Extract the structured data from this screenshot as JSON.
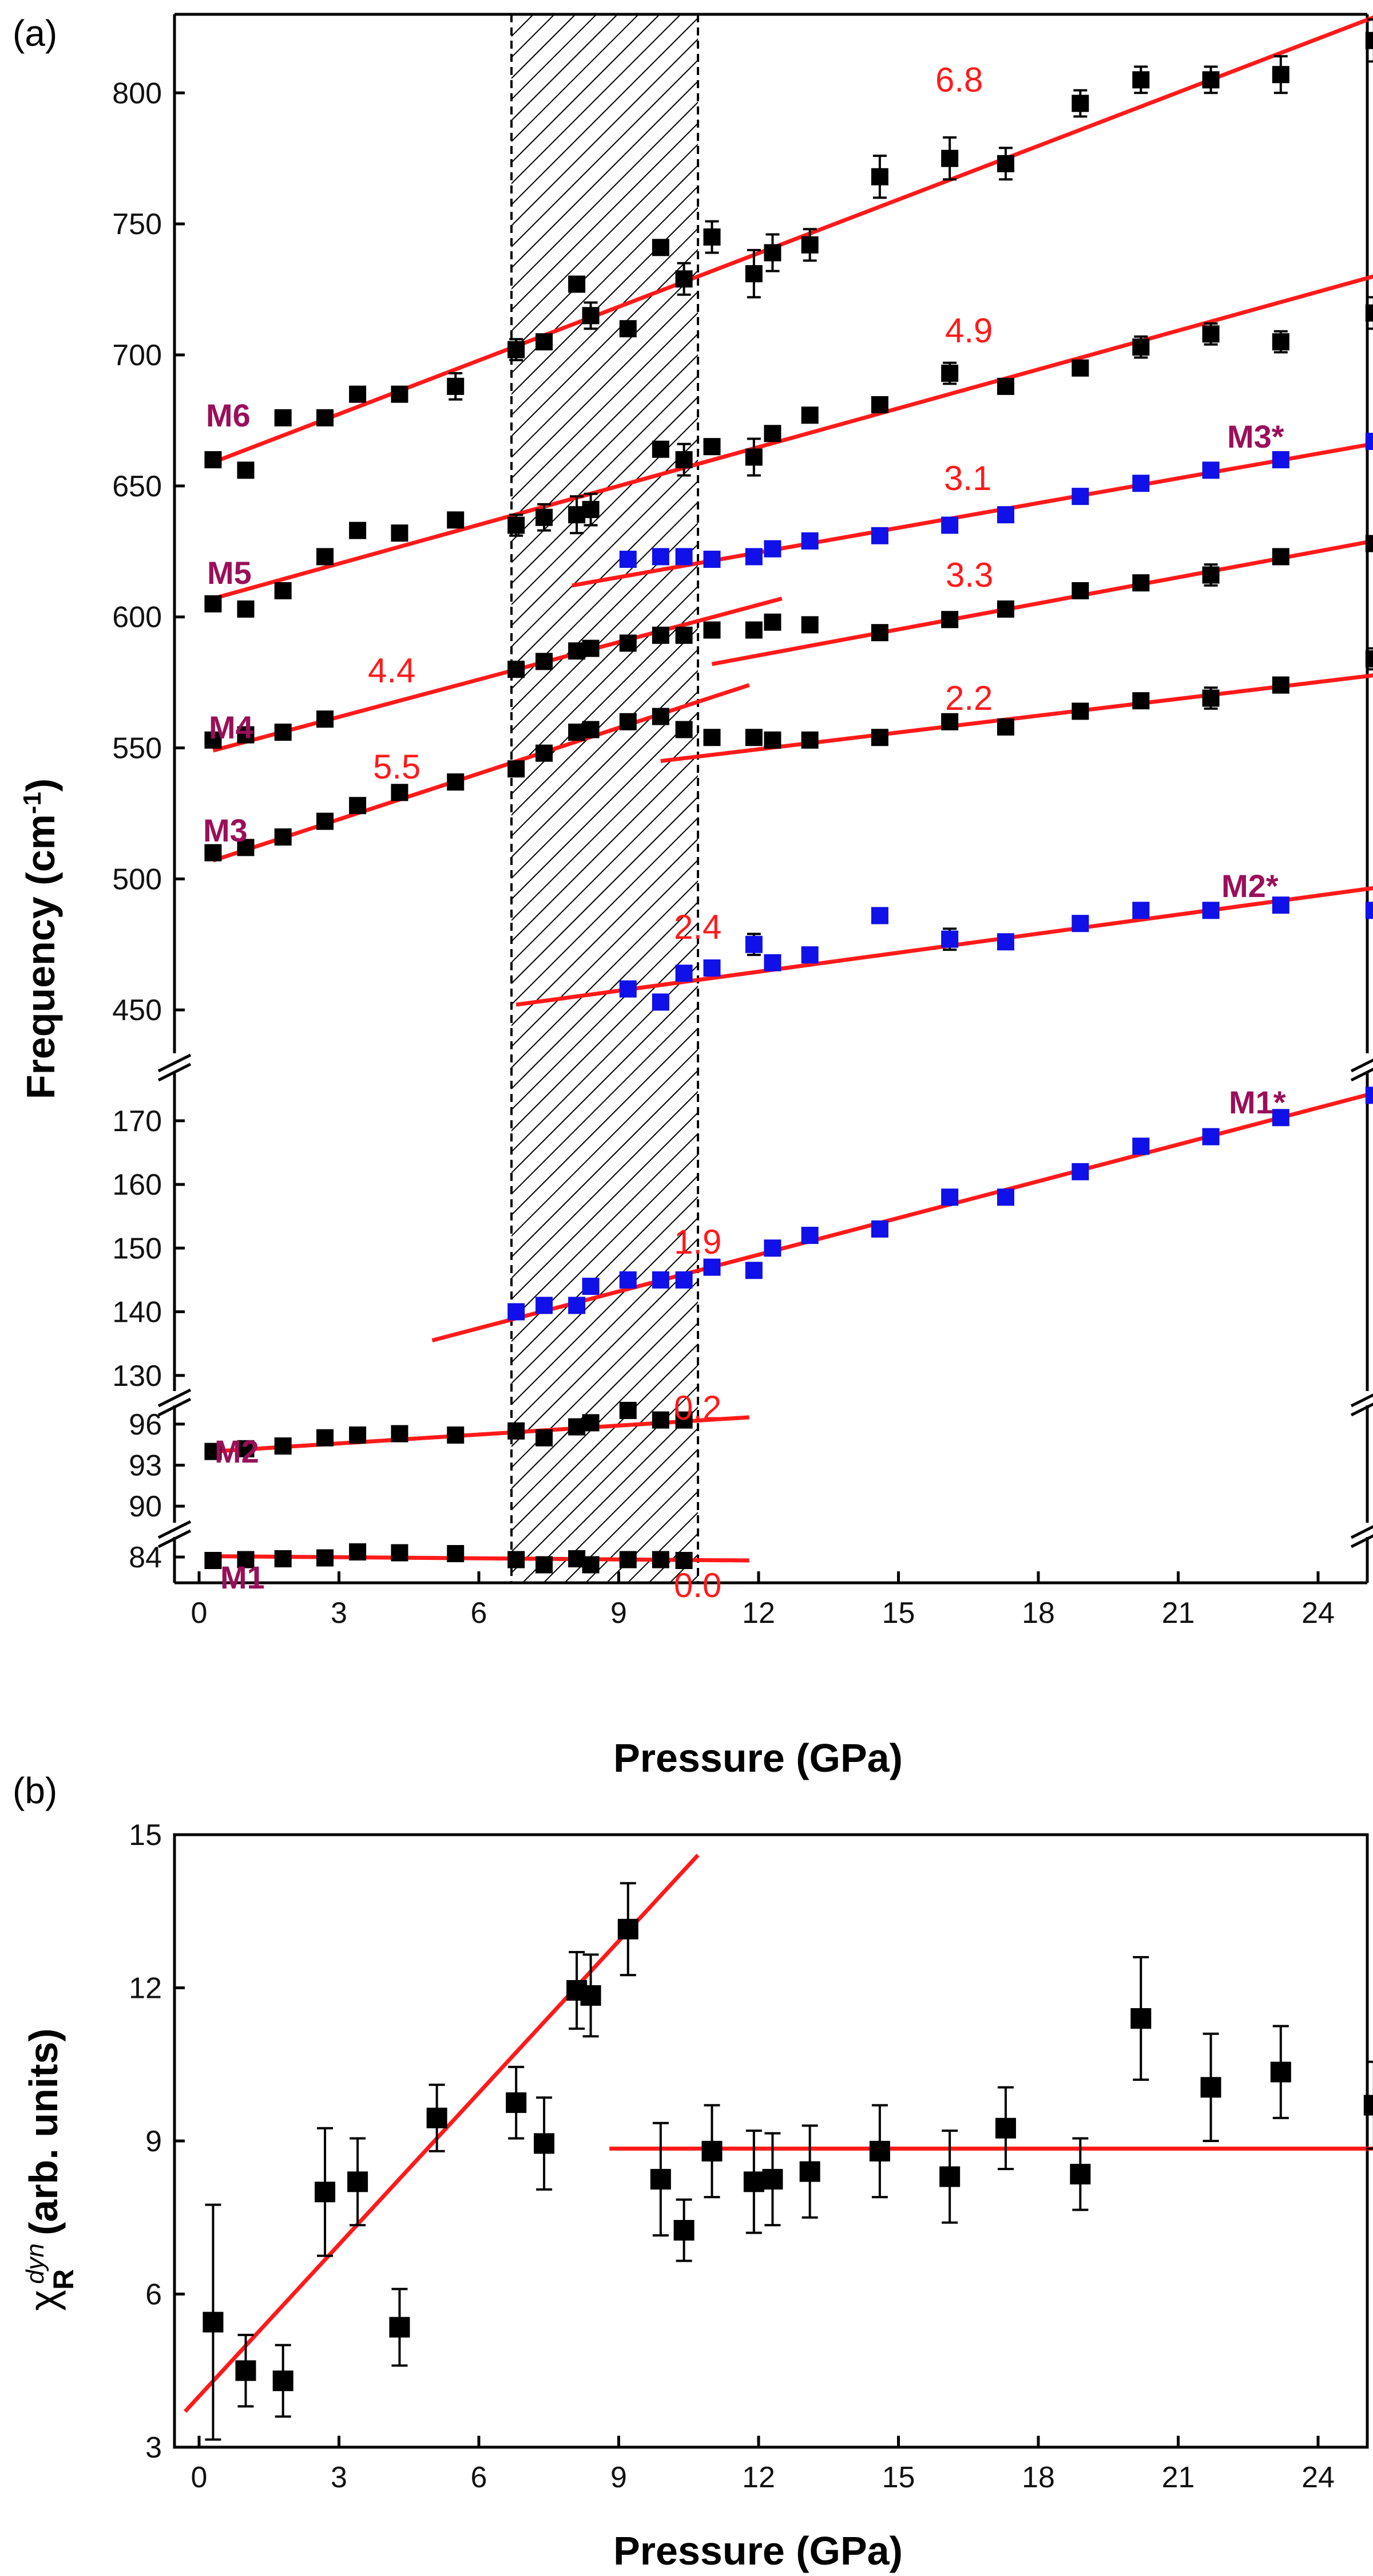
{
  "chart_data": [
    {
      "panel": "(a)",
      "type": "scatter",
      "xlabel": "Pressure (GPa)",
      "ylabel": "Frequency (cm",
      "ylabel_sup": "-1",
      "ylabel_tail": ")",
      "xlim": [
        -0.5,
        26
      ],
      "x_ticks": [
        0,
        3,
        6,
        9,
        12,
        15,
        18,
        21,
        24
      ],
      "shaded_region": [
        6.7,
        10.7
      ],
      "segments": [
        {
          "name": "upper",
          "ylim": [
            440,
            830
          ],
          "ticks": [
            450,
            500,
            550,
            600,
            650,
            700,
            750,
            800
          ]
        },
        {
          "name": "mid",
          "ylim": [
            128,
            177
          ],
          "ticks": [
            130,
            140,
            150,
            160,
            170
          ]
        },
        {
          "name": "m2",
          "ylim": [
            89,
            98
          ],
          "ticks": [
            90,
            93,
            96
          ]
        },
        {
          "name": "m1",
          "ylim": [
            81,
            86
          ],
          "ticks": [
            84
          ]
        }
      ],
      "series": [
        {
          "name": "M6",
          "segment": "upper",
          "color": "#000000",
          "x": [
            0.3,
            1.0,
            1.8,
            2.7,
            3.4,
            4.3,
            5.5,
            6.8,
            7.4,
            8.1,
            8.4,
            9.2,
            9.9,
            10.4,
            11.0,
            11.9,
            12.3,
            13.1,
            14.6,
            16.1,
            17.3,
            18.9,
            20.2,
            21.7,
            23.2,
            25.2
          ],
          "y": [
            660,
            656,
            676,
            676,
            685,
            685,
            688,
            702,
            705,
            727,
            715,
            710,
            741,
            729,
            745,
            731,
            739,
            742,
            768,
            775,
            773,
            796,
            805,
            805,
            807,
            820
          ],
          "err": [
            0,
            0,
            0,
            0,
            0,
            0,
            5,
            4,
            0,
            0,
            5,
            0,
            0,
            6,
            6,
            9,
            7,
            6,
            8,
            8,
            6,
            5,
            5,
            5,
            7,
            8
          ]
        },
        {
          "name": "M5",
          "segment": "upper",
          "color": "#000000",
          "x": [
            0.3,
            1.0,
            1.8,
            2.7,
            3.4,
            4.3,
            5.5,
            6.8,
            7.4,
            8.1,
            8.4,
            9.9,
            10.4,
            11.0,
            11.9,
            12.3,
            13.1,
            14.6,
            16.1,
            17.3,
            18.9,
            20.2,
            21.7,
            23.2,
            25.2
          ],
          "y": [
            605,
            603,
            610,
            623,
            633,
            632,
            637,
            635,
            638,
            639,
            641,
            664,
            660,
            665,
            661,
            670,
            677,
            681,
            693,
            688,
            695,
            703,
            708,
            705,
            716
          ],
          "err": [
            0,
            0,
            0,
            0,
            0,
            0,
            0,
            4,
            5,
            7,
            6,
            0,
            6,
            0,
            7,
            0,
            0,
            0,
            4,
            0,
            0,
            4,
            4,
            4,
            6
          ]
        },
        {
          "name": "M4",
          "segment": "upper",
          "color": "#000000",
          "x": [
            0.3,
            1.0,
            1.8,
            2.7,
            6.8,
            7.4,
            8.1,
            8.4,
            9.2,
            9.9,
            10.4,
            11.0,
            11.9,
            12.3,
            13.1,
            14.6,
            16.1,
            17.3,
            18.9,
            20.2,
            21.7,
            23.2,
            25.2
          ],
          "y": [
            553,
            555,
            556,
            561,
            580,
            583,
            587,
            588,
            590,
            593,
            593,
            595,
            595,
            598,
            597,
            594,
            599,
            603,
            610,
            613,
            616,
            623,
            628
          ],
          "err": [
            0,
            0,
            0,
            0,
            0,
            0,
            0,
            0,
            0,
            0,
            0,
            0,
            0,
            0,
            0,
            0,
            0,
            0,
            0,
            0,
            4,
            0,
            0
          ]
        },
        {
          "name": "M3",
          "segment": "upper",
          "color": "#000000",
          "x": [
            0.3,
            1.0,
            1.8,
            2.7,
            3.4,
            4.3,
            5.5,
            6.8,
            7.4,
            8.1,
            8.4,
            9.2,
            9.9,
            10.4,
            11.0,
            11.9,
            12.3,
            13.1,
            14.6,
            16.1,
            17.3,
            18.9,
            20.2,
            21.7,
            23.2,
            25.2
          ],
          "y": [
            510,
            512,
            516,
            522,
            528,
            533,
            537,
            542,
            548,
            556,
            557,
            560,
            562,
            557,
            554,
            554,
            553,
            553,
            554,
            560,
            558,
            564,
            568,
            569,
            574,
            584
          ],
          "err": [
            0,
            0,
            0,
            0,
            0,
            0,
            0,
            0,
            0,
            0,
            0,
            0,
            0,
            0,
            0,
            0,
            0,
            0,
            0,
            0,
            0,
            0,
            0,
            4,
            0,
            4
          ]
        },
        {
          "name": "M3*",
          "segment": "upper",
          "color": "#1010e8",
          "x": [
            9.2,
            9.9,
            10.4,
            11.0,
            11.9,
            12.3,
            13.1,
            14.6,
            16.1,
            17.3,
            18.9,
            20.2,
            21.7,
            23.2,
            25.2
          ],
          "y": [
            622,
            623,
            623,
            622,
            623,
            626,
            629,
            631,
            635,
            639,
            646,
            651,
            656,
            660,
            667
          ],
          "err": [
            0,
            0,
            0,
            0,
            0,
            0,
            0,
            0,
            0,
            0,
            0,
            0,
            0,
            0,
            0
          ]
        },
        {
          "name": "M2*",
          "segment": "upper",
          "color": "#1010e8",
          "x": [
            9.2,
            9.9,
            10.4,
            11.0,
            11.9,
            12.3,
            13.1,
            14.6,
            16.1,
            17.3,
            18.9,
            20.2,
            21.7,
            23.2,
            25.2
          ],
          "y": [
            458,
            453,
            464,
            466,
            475,
            468,
            471,
            486,
            477,
            476,
            483,
            488,
            488,
            490,
            488
          ],
          "err": [
            0,
            0,
            0,
            0,
            4,
            0,
            0,
            0,
            4,
            0,
            0,
            0,
            0,
            0,
            0
          ]
        },
        {
          "name": "M1*",
          "segment": "mid",
          "color": "#1010e8",
          "x": [
            6.8,
            7.4,
            8.1,
            8.4,
            9.2,
            9.9,
            10.4,
            11.0,
            11.9,
            12.3,
            13.1,
            14.6,
            16.1,
            17.3,
            18.9,
            20.2,
            21.7,
            23.2,
            25.2
          ],
          "y": [
            140,
            141,
            141,
            144,
            145,
            145,
            145,
            147,
            146.5,
            150,
            152,
            153,
            158,
            158,
            162,
            166,
            167.5,
            170.5,
            174
          ],
          "err": [
            0,
            0,
            0,
            0,
            0,
            0,
            0,
            0,
            0,
            0,
            0,
            0,
            0,
            0,
            0,
            0,
            0,
            0,
            0
          ]
        },
        {
          "name": "M2",
          "segment": "m2",
          "color": "#000000",
          "x": [
            0.3,
            1.0,
            1.8,
            2.7,
            3.4,
            4.3,
            5.5,
            6.8,
            7.4,
            8.1,
            8.4,
            9.2,
            9.9,
            10.4
          ],
          "y": [
            94.0,
            94.2,
            94.4,
            95.0,
            95.2,
            95.3,
            95.2,
            95.5,
            95.0,
            95.8,
            96.1,
            97.0,
            96.3,
            96.3
          ],
          "err": [
            0,
            0,
            0,
            0,
            0,
            0,
            0,
            0,
            0,
            0,
            0,
            0,
            0,
            0
          ]
        },
        {
          "name": "M1",
          "segment": "m1",
          "color": "#000000",
          "x": [
            0.3,
            1.0,
            1.8,
            2.7,
            3.4,
            4.3,
            5.5,
            6.8,
            7.4,
            8.1,
            8.4,
            9.2,
            9.9,
            10.4
          ],
          "y": [
            83.6,
            83.7,
            83.8,
            83.9,
            84.6,
            84.5,
            84.4,
            83.7,
            83.1,
            83.8,
            83.1,
            83.7,
            83.7,
            83.6
          ],
          "err": [
            0,
            0,
            0,
            0,
            0,
            0,
            0,
            0,
            0,
            0,
            0,
            0,
            0,
            0
          ]
        }
      ],
      "fits": [
        {
          "segment": "upper",
          "x": [
            0.3,
            25.8
          ],
          "y": [
            659,
            833
          ],
          "slope_label": "6.8"
        },
        {
          "segment": "upper",
          "x": [
            0.3,
            25.8
          ],
          "y": [
            607,
            733
          ],
          "slope_label": "4.9"
        },
        {
          "segment": "upper",
          "x": [
            8.0,
            25.8
          ],
          "y": [
            612,
            668
          ],
          "slope_label": "3.1"
        },
        {
          "segment": "upper",
          "x": [
            11.0,
            25.8
          ],
          "y": [
            582,
            631
          ],
          "slope_label": "3.3"
        },
        {
          "segment": "upper",
          "x": [
            0.3,
            12.5
          ],
          "y": [
            549,
            607
          ],
          "slope_label": "4.4"
        },
        {
          "segment": "upper",
          "x": [
            0.3,
            11.8
          ],
          "y": [
            507,
            574
          ],
          "slope_label": "5.5"
        },
        {
          "segment": "upper",
          "x": [
            9.9,
            25.8
          ],
          "y": [
            545,
            579
          ],
          "slope_label": "2.2"
        },
        {
          "segment": "upper",
          "x": [
            6.8,
            25.8
          ],
          "y": [
            452,
            498
          ],
          "slope_label": "2.4"
        },
        {
          "segment": "mid",
          "x": [
            5.0,
            25.8
          ],
          "y": [
            135.5,
            175.5
          ],
          "slope_label": "1.9"
        },
        {
          "segment": "m2",
          "x": [
            0.3,
            11.8
          ],
          "y": [
            94.0,
            96.5
          ],
          "slope_label": "0.2"
        },
        {
          "segment": "m1",
          "x": [
            0.3,
            11.8
          ],
          "y": [
            84.1,
            83.6
          ],
          "slope_label": "0.0"
        }
      ],
      "slope_labels": [
        "6.8",
        "4.9",
        "3.1",
        "3.3",
        "4.4",
        "5.5",
        "2.2",
        "2.4",
        "1.9",
        "0.2",
        "0.0"
      ],
      "mode_labels": [
        "M6",
        "M5",
        "M4",
        "M3",
        "M3*",
        "M2*",
        "M1*",
        "M2",
        "M1"
      ]
    },
    {
      "panel": "(b)",
      "type": "scatter",
      "xlabel": "Pressure (GPa)",
      "ylabel_main": "χ",
      "ylabel_sup": "dyn",
      "ylabel_sub": "R",
      "ylabel_tail": "(arb. units)",
      "xlim": [
        -0.5,
        26
      ],
      "ylim": [
        3,
        15
      ],
      "x_ticks": [
        0,
        3,
        6,
        9,
        12,
        15,
        18,
        21,
        24
      ],
      "y_ticks": [
        3,
        6,
        9,
        12,
        15
      ],
      "series": [
        {
          "name": "chi_R_dyn",
          "color": "#000000",
          "x": [
            0.3,
            1.0,
            1.8,
            2.7,
            3.4,
            4.3,
            5.1,
            6.8,
            7.4,
            8.1,
            8.4,
            9.2,
            9.9,
            10.4,
            11.0,
            11.9,
            12.3,
            13.1,
            14.6,
            16.1,
            17.3,
            18.9,
            20.2,
            21.7,
            23.2,
            25.2
          ],
          "y": [
            5.45,
            4.5,
            4.3,
            8.0,
            8.2,
            5.35,
            9.45,
            9.75,
            8.95,
            11.95,
            11.85,
            13.15,
            8.25,
            7.25,
            8.8,
            8.2,
            8.25,
            8.4,
            8.8,
            8.3,
            9.25,
            8.35,
            11.4,
            10.05,
            10.35,
            9.7
          ],
          "err": [
            2.3,
            0.7,
            0.7,
            1.25,
            0.85,
            0.75,
            0.65,
            0.7,
            0.9,
            0.75,
            0.8,
            0.9,
            1.1,
            0.6,
            0.9,
            1.0,
            0.9,
            0.9,
            0.9,
            0.9,
            0.8,
            0.7,
            1.2,
            1.05,
            0.9,
            0.85
          ]
        }
      ],
      "fits": [
        {
          "x": [
            -0.3,
            10.7
          ],
          "y": [
            3.7,
            14.6
          ]
        },
        {
          "x": [
            8.8,
            25.8
          ],
          "y": [
            8.85,
            8.85
          ]
        }
      ]
    }
  ]
}
